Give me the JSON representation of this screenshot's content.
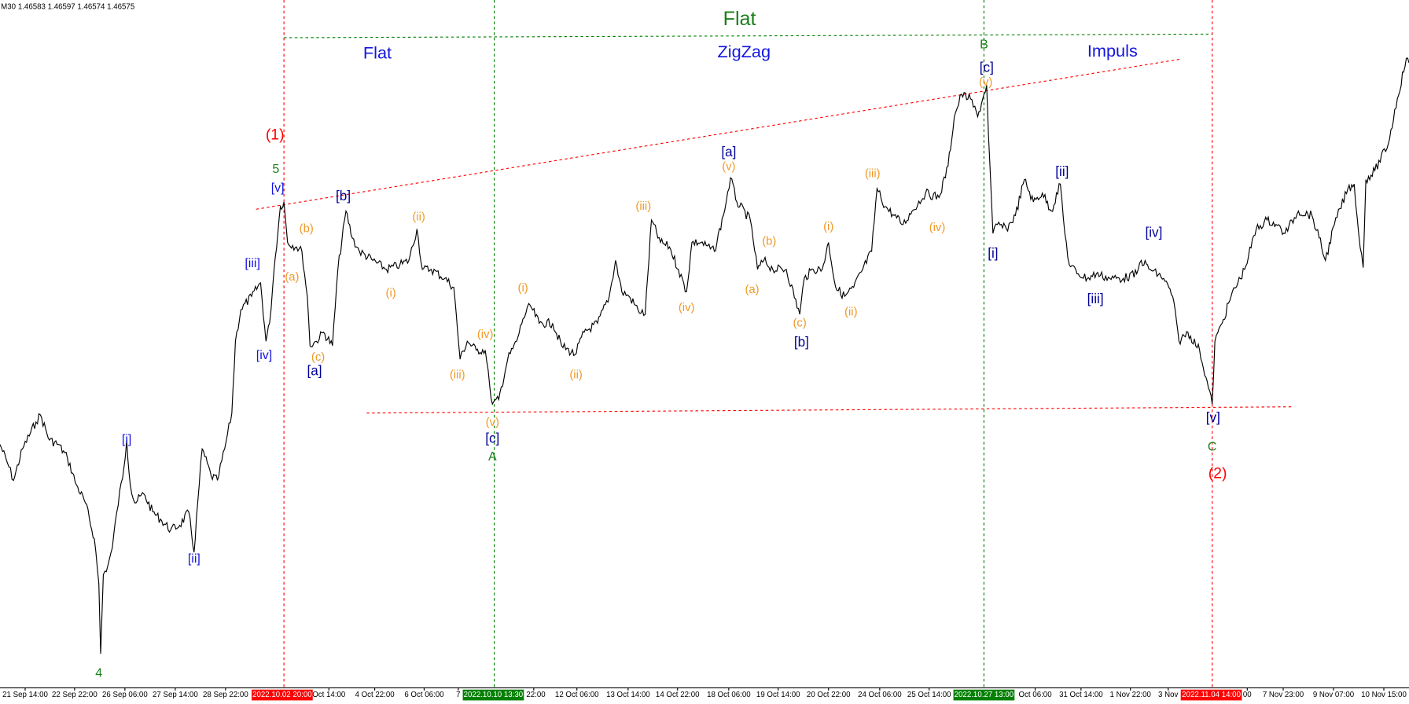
{
  "header": {
    "timeframe": "M30",
    "quote": "1.46583 1.46597 1.46574 1.46575"
  },
  "x_axis": {
    "labels": [
      "21 Sep 14:00",
      "22 Sep 22:00",
      "26 Sep 06:00",
      "27 Sep 14:00",
      "28 Sep 22:00",
      "Oct 14:00",
      "4 Oct 22:00",
      "6 Oct 06:00",
      "7",
      ": 22:00",
      "12 Oct 06:00",
      "13 Oct 14:00",
      "14 Oct 22:00",
      "18 Oct 06:00",
      "19 Oct 14:00",
      "20 Oct 22:00",
      "24 Oct 06:00",
      "25 Oct 14:00",
      "Oct 06:00",
      "31 Oct 14:00",
      "1 Nov 22:00",
      "3 Nov",
      "00",
      "7 Nov 23:00",
      "9 Nov 07:00",
      "10 Nov 15:00"
    ],
    "highlights": [
      {
        "text": "2022.10.02 20:00",
        "color": "#ff0000"
      },
      {
        "text": "2022.10.10 13:30",
        "color": "#008000"
      },
      {
        "text": "2022.10.27 13:00",
        "color": "#008000"
      },
      {
        "text": "2022.11.04 14:00",
        "color": "#ff0000"
      }
    ]
  },
  "annotations": [
    {
      "text": "Flat",
      "color": "#1a7f1a"
    },
    {
      "text": "Flat",
      "color": "#1515e0"
    },
    {
      "text": "ZigZag",
      "color": "#1515e0"
    },
    {
      "text": "Impuls",
      "color": "#1515e0"
    },
    {
      "text": "(1)",
      "color": "#ff0000"
    },
    {
      "text": "(2)",
      "color": "#ff0000"
    },
    {
      "text": "5",
      "color": "#1a7f1a"
    },
    {
      "text": "4",
      "color": "#1a7f1a"
    },
    {
      "text": "A",
      "color": "#1a7f1a"
    },
    {
      "text": "B",
      "color": "#1a7f1a"
    },
    {
      "text": "C",
      "color": "#1a7f1a"
    },
    {
      "text": "[v]",
      "color": "#1515e0"
    },
    {
      "text": "[iii]",
      "color": "#1515e0"
    },
    {
      "text": "[iv]",
      "color": "#1515e0"
    },
    {
      "text": "[i]",
      "color": "#1515e0"
    },
    {
      "text": "[ii]",
      "color": "#1515e0"
    },
    {
      "text": "[b]",
      "color": "#000099"
    },
    {
      "text": "[a]",
      "color": "#000099"
    },
    {
      "text": "[c]",
      "color": "#000099"
    },
    {
      "text": "[a]",
      "color": "#000099"
    },
    {
      "text": "[b]",
      "color": "#000099"
    },
    {
      "text": "[c]",
      "color": "#000099"
    },
    {
      "text": "[i]",
      "color": "#000099"
    },
    {
      "text": "[ii]",
      "color": "#000099"
    },
    {
      "text": "[iii]",
      "color": "#000099"
    },
    {
      "text": "[iv]",
      "color": "#000099"
    },
    {
      "text": "[v]",
      "color": "#000099"
    },
    {
      "text": "(b)",
      "color": "#f09a28"
    },
    {
      "text": "(a)",
      "color": "#f09a28"
    },
    {
      "text": "(c)",
      "color": "#f09a28"
    },
    {
      "text": "(ii)",
      "color": "#f09a28"
    },
    {
      "text": "(i)",
      "color": "#f09a28"
    },
    {
      "text": "(iii)",
      "color": "#f09a28"
    },
    {
      "text": "(iv)",
      "color": "#f09a28"
    },
    {
      "text": "(v)",
      "color": "#f09a28"
    },
    {
      "text": "(i)",
      "color": "#f09a28"
    },
    {
      "text": "(ii)",
      "color": "#f09a28"
    },
    {
      "text": "(iii)",
      "color": "#f09a28"
    },
    {
      "text": "(iv)",
      "color": "#f09a28"
    },
    {
      "text": "(v)",
      "color": "#f09a28"
    },
    {
      "text": "(b)",
      "color": "#f09a28"
    },
    {
      "text": "(a)",
      "color": "#f09a28"
    },
    {
      "text": "(c)",
      "color": "#f09a28"
    },
    {
      "text": "(i)",
      "color": "#f09a28"
    },
    {
      "text": "(ii)",
      "color": "#f09a28"
    },
    {
      "text": "(iii)",
      "color": "#f09a28"
    },
    {
      "text": "(iv)",
      "color": "#f09a28"
    },
    {
      "text": "(v)",
      "color": "#f09a28"
    }
  ]
}
